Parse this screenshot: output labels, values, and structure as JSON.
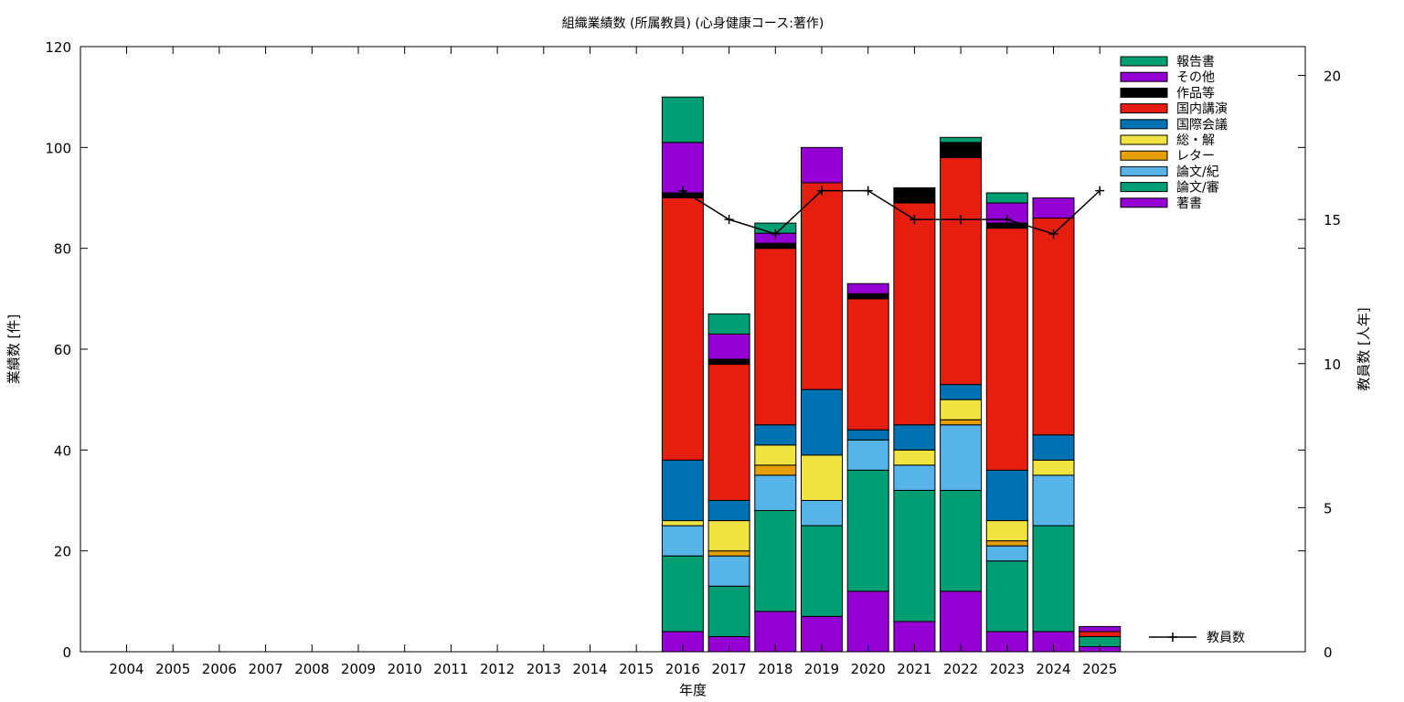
{
  "chart_data": {
    "type": "bar",
    "title": "組織業績数 (所属教員) (心身健康コース:著作)",
    "xlabel": "年度",
    "ylabel": "業績数 [件]",
    "y2label": "教員数 [人年]",
    "ylim": [
      0,
      120
    ],
    "y2lim": [
      0,
      21
    ],
    "yticks": [
      "0",
      "20",
      "40",
      "60",
      "80",
      "100",
      "120"
    ],
    "y2ticks": [
      "0",
      "5",
      "10",
      "15",
      "20"
    ],
    "grid": false,
    "legend_position": "top-right",
    "categories": [
      "2004",
      "2005",
      "2006",
      "2007",
      "2008",
      "2009",
      "2010",
      "2011",
      "2012",
      "2013",
      "2014",
      "2015",
      "2016",
      "2017",
      "2018",
      "2019",
      "2020",
      "2021",
      "2022",
      "2023",
      "2024",
      "2025"
    ],
    "series": [
      {
        "name": "著書",
        "color": "#9400d3",
        "values": [
          0,
          0,
          0,
          0,
          0,
          0,
          0,
          0,
          0,
          0,
          0,
          0,
          4,
          3,
          8,
          7,
          12,
          6,
          12,
          4,
          4,
          1
        ]
      },
      {
        "name": "論文/審",
        "color": "#009e73",
        "values": [
          0,
          0,
          0,
          0,
          0,
          0,
          0,
          0,
          0,
          0,
          0,
          0,
          15,
          10,
          20,
          18,
          24,
          26,
          20,
          14,
          21,
          2
        ]
      },
      {
        "name": "論文/紀",
        "color": "#56b4e9",
        "values": [
          0,
          0,
          0,
          0,
          0,
          0,
          0,
          0,
          0,
          0,
          0,
          0,
          6,
          6,
          7,
          5,
          6,
          5,
          13,
          3,
          10,
          0
        ]
      },
      {
        "name": "レター",
        "color": "#e69f00",
        "values": [
          0,
          0,
          0,
          0,
          0,
          0,
          0,
          0,
          0,
          0,
          0,
          0,
          0,
          1,
          2,
          0,
          0,
          0,
          1,
          1,
          0,
          0
        ]
      },
      {
        "name": "総・解",
        "color": "#f0e442",
        "values": [
          0,
          0,
          0,
          0,
          0,
          0,
          0,
          0,
          0,
          0,
          0,
          0,
          1,
          6,
          4,
          9,
          0,
          3,
          4,
          4,
          3,
          0
        ]
      },
      {
        "name": "国際会議",
        "color": "#0072b2",
        "values": [
          0,
          0,
          0,
          0,
          0,
          0,
          0,
          0,
          0,
          0,
          0,
          0,
          12,
          4,
          4,
          13,
          2,
          5,
          3,
          10,
          5,
          0
        ]
      },
      {
        "name": "国内講演",
        "color": "#e51e10",
        "values": [
          0,
          0,
          0,
          0,
          0,
          0,
          0,
          0,
          0,
          0,
          0,
          0,
          52,
          27,
          35,
          41,
          26,
          44,
          45,
          48,
          43,
          1
        ]
      },
      {
        "name": "作品等",
        "color": "#000000",
        "values": [
          0,
          0,
          0,
          0,
          0,
          0,
          0,
          0,
          0,
          0,
          0,
          0,
          1,
          1,
          1,
          0,
          1,
          3,
          3,
          1,
          0,
          0
        ]
      },
      {
        "name": "その他",
        "color": "#9400d3",
        "values": [
          0,
          0,
          0,
          0,
          0,
          0,
          0,
          0,
          0,
          0,
          0,
          0,
          10,
          5,
          2,
          7,
          2,
          0,
          0,
          4,
          4,
          1
        ]
      },
      {
        "name": "報告書",
        "color": "#009e73",
        "values": [
          0,
          0,
          0,
          0,
          0,
          0,
          0,
          0,
          0,
          0,
          0,
          0,
          9,
          4,
          2,
          0,
          0,
          0,
          1,
          2,
          0,
          0
        ]
      }
    ],
    "line": {
      "name": "教員数",
      "color": "#000000",
      "axis": "y2",
      "values": [
        null,
        null,
        null,
        null,
        null,
        null,
        null,
        null,
        null,
        null,
        null,
        null,
        16,
        15,
        14.5,
        16,
        16,
        15,
        15,
        15,
        14.5,
        16
      ]
    }
  }
}
